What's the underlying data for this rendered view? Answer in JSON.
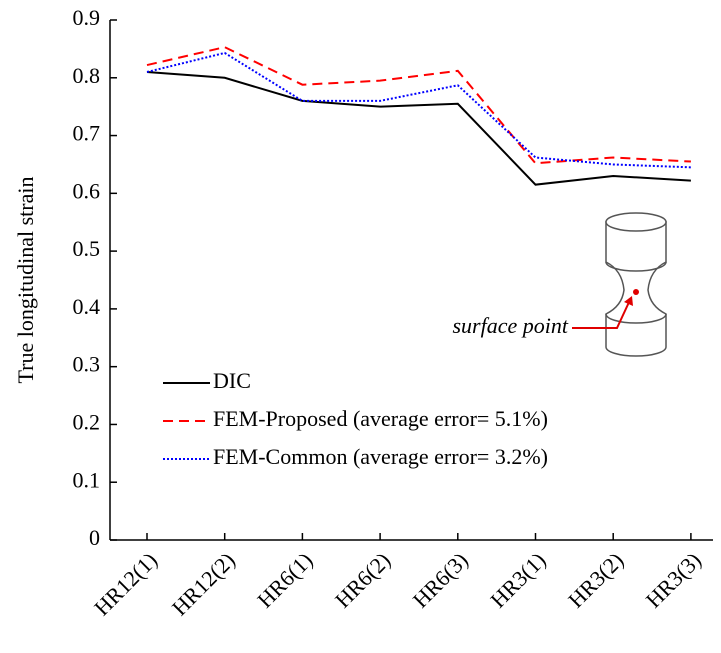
{
  "chart_data": {
    "type": "line",
    "y_label": "True longitudinal strain",
    "categories": [
      "HR12(1)",
      "HR12(2)",
      "HR6(1)",
      "HR6(2)",
      "HR6(3)",
      "HR3(1)",
      "HR3(2)",
      "HR3(3)"
    ],
    "series": [
      {
        "name": "DIC",
        "color": "#000000",
        "style": "solid",
        "values": [
          0.81,
          0.8,
          0.76,
          0.75,
          0.755,
          0.615,
          0.63,
          0.622
        ]
      },
      {
        "name": "FEM-Proposed (average error= 5.1%)",
        "color": "#ff0000",
        "style": "dashed",
        "values": [
          0.822,
          0.853,
          0.788,
          0.795,
          0.812,
          0.652,
          0.662,
          0.655
        ]
      },
      {
        "name": "FEM-Common (average error= 3.2%)",
        "color": "#0000ff",
        "style": "dotted",
        "values": [
          0.81,
          0.843,
          0.76,
          0.76,
          0.787,
          0.662,
          0.65,
          0.645
        ]
      }
    ],
    "annotation": "surface point",
    "ylim": [
      0,
      0.9
    ],
    "yticks": [
      0,
      0.1,
      0.2,
      0.3,
      0.4,
      0.5,
      0.6,
      0.7,
      0.8,
      0.9
    ],
    "legend": "lower left"
  }
}
